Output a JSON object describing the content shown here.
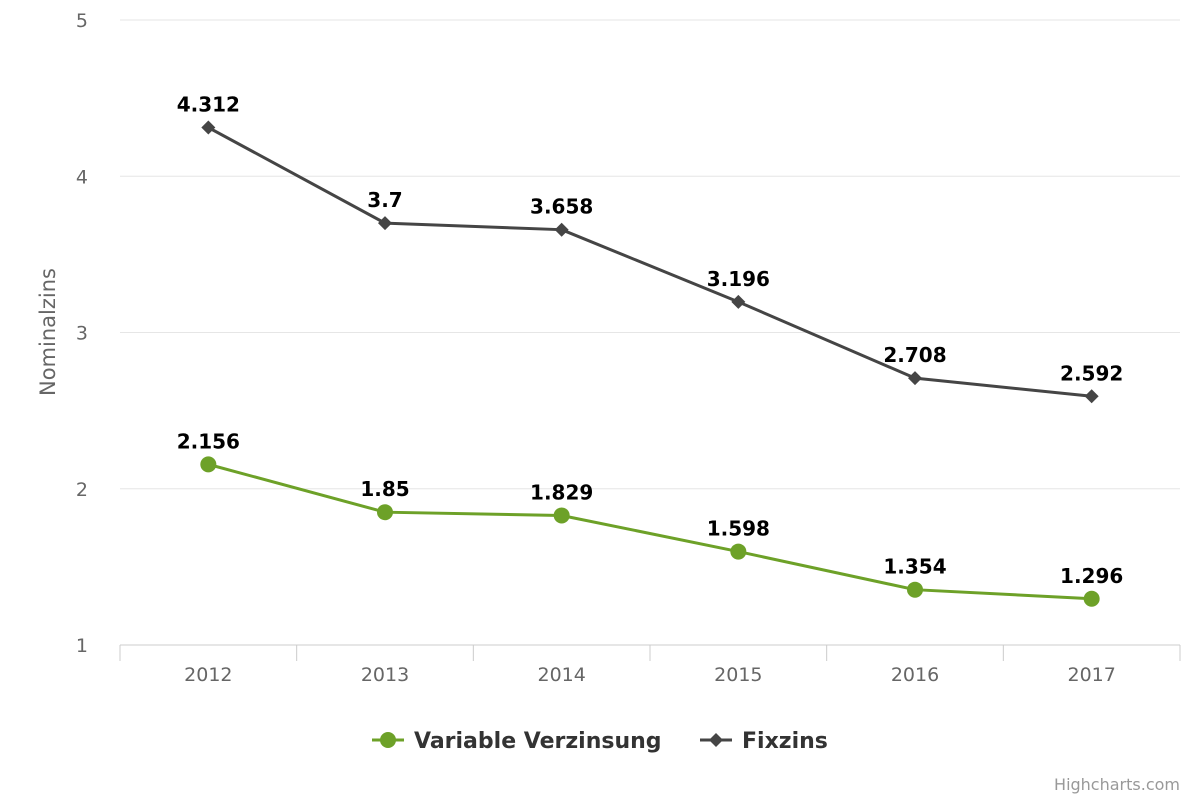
{
  "chart_data": {
    "type": "line",
    "title": "",
    "xlabel": "",
    "ylabel": "Nominalzins",
    "categories": [
      "2012",
      "2013",
      "2014",
      "2015",
      "2016",
      "2017"
    ],
    "ylim": [
      1,
      5
    ],
    "yticks": [
      "1",
      "2",
      "3",
      "4",
      "5"
    ],
    "grid": true,
    "legend_position": "bottom-center",
    "series": [
      {
        "name": "Variable Verzinsung",
        "color": "#6da128",
        "marker": "circle",
        "values": [
          2.156,
          1.85,
          1.829,
          1.598,
          1.354,
          1.296
        ],
        "labels": [
          "2.156",
          "1.85",
          "1.829",
          "1.598",
          "1.354",
          "1.296"
        ]
      },
      {
        "name": "Fixzins",
        "color": "#454545",
        "marker": "diamond",
        "values": [
          4.312,
          3.7,
          3.658,
          3.196,
          2.708,
          2.592
        ],
        "labels": [
          "4.312",
          "3.7",
          "3.658",
          "3.196",
          "2.708",
          "2.592"
        ]
      }
    ]
  },
  "credits": "Highcharts.com"
}
